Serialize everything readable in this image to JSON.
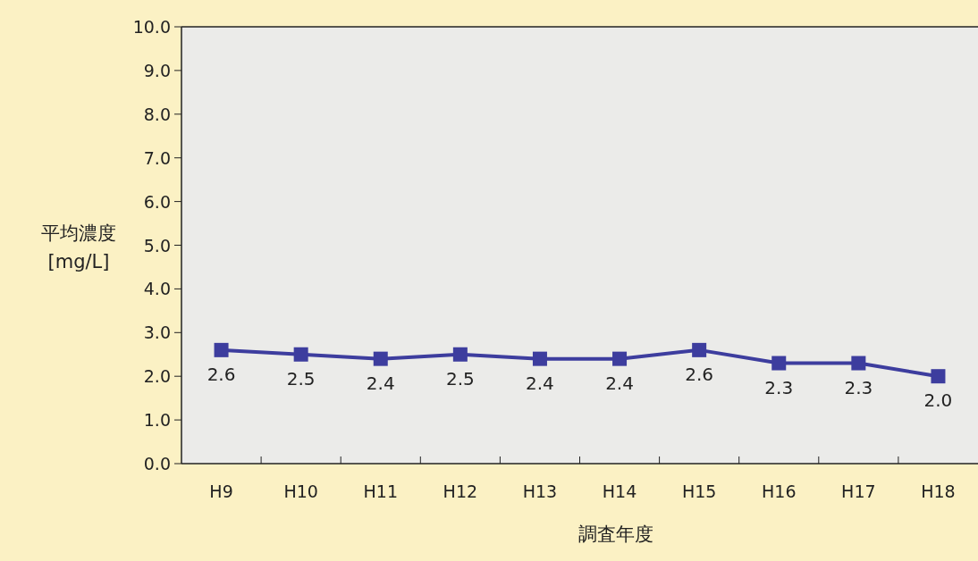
{
  "chart_data": {
    "type": "line",
    "xlabel": "調査年度",
    "ylabel": "平均濃度\n[mg/L]",
    "categories": [
      "H9",
      "H10",
      "H11",
      "H12",
      "H13",
      "H14",
      "H15",
      "H16",
      "H17",
      "H18"
    ],
    "series": [
      {
        "color": "#3d3d9e",
        "values": [
          2.6,
          2.5,
          2.4,
          2.5,
          2.4,
          2.4,
          2.6,
          2.3,
          2.3,
          2.0
        ],
        "value_labels": [
          "2.6",
          "2.5",
          "2.4",
          "2.5",
          "2.4",
          "2.4",
          "2.6",
          "2.3",
          "2.3",
          "2.0"
        ]
      }
    ],
    "ylim": [
      0,
      10
    ],
    "yticks": [
      {
        "value": 0,
        "label": "0.0"
      },
      {
        "value": 1,
        "label": "1.0"
      },
      {
        "value": 2,
        "label": "2.0"
      },
      {
        "value": 3,
        "label": "3.0"
      },
      {
        "value": 4,
        "label": "4.0"
      },
      {
        "value": 5,
        "label": "5.0"
      },
      {
        "value": 6,
        "label": "6.0"
      },
      {
        "value": 7,
        "label": "7.0"
      },
      {
        "value": 8,
        "label": "8.0"
      },
      {
        "value": 9,
        "label": "9.0"
      },
      {
        "value": 10,
        "label": "10.0"
      }
    ],
    "marker": "square",
    "line_style": "solid"
  }
}
